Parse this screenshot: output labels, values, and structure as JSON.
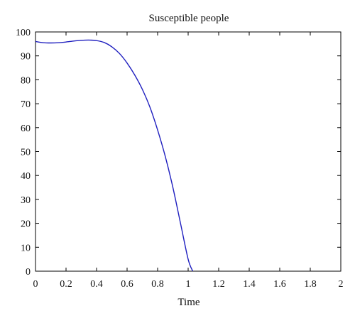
{
  "chart_data": {
    "type": "line",
    "title": "Susceptible people",
    "xlabel": "Time",
    "ylabel": "",
    "xlim": [
      0,
      2
    ],
    "ylim": [
      0,
      100
    ],
    "xticks": [
      0,
      0.2,
      0.4,
      0.6,
      0.8,
      1,
      1.2,
      1.4,
      1.6,
      1.8,
      2
    ],
    "xtick_labels": [
      "0",
      "0.2",
      "0.4",
      "0.6",
      "0.8",
      "1",
      "1.2",
      "1.4",
      "1.6",
      "1.8",
      "2"
    ],
    "yticks": [
      0,
      10,
      20,
      30,
      40,
      50,
      60,
      70,
      80,
      90,
      100
    ],
    "ytick_labels": [
      "0",
      "10",
      "20",
      "30",
      "40",
      "50",
      "60",
      "70",
      "80",
      "90",
      "100"
    ],
    "grid": false,
    "series": [
      {
        "color": "#1f1fbf",
        "x": [
          0,
          0.05,
          0.1,
          0.15,
          0.2,
          0.25,
          0.3,
          0.35,
          0.4,
          0.45,
          0.5,
          0.55,
          0.6,
          0.65,
          0.7,
          0.75,
          0.8,
          0.85,
          0.9,
          0.95,
          1.0,
          1.03
        ],
        "y": [
          96,
          95.5,
          95.4,
          95.5,
          95.8,
          96.2,
          96.5,
          96.6,
          96.4,
          95.6,
          93.8,
          91,
          87,
          82,
          76,
          68.5,
          59,
          48,
          35,
          20,
          5,
          0
        ]
      }
    ]
  }
}
